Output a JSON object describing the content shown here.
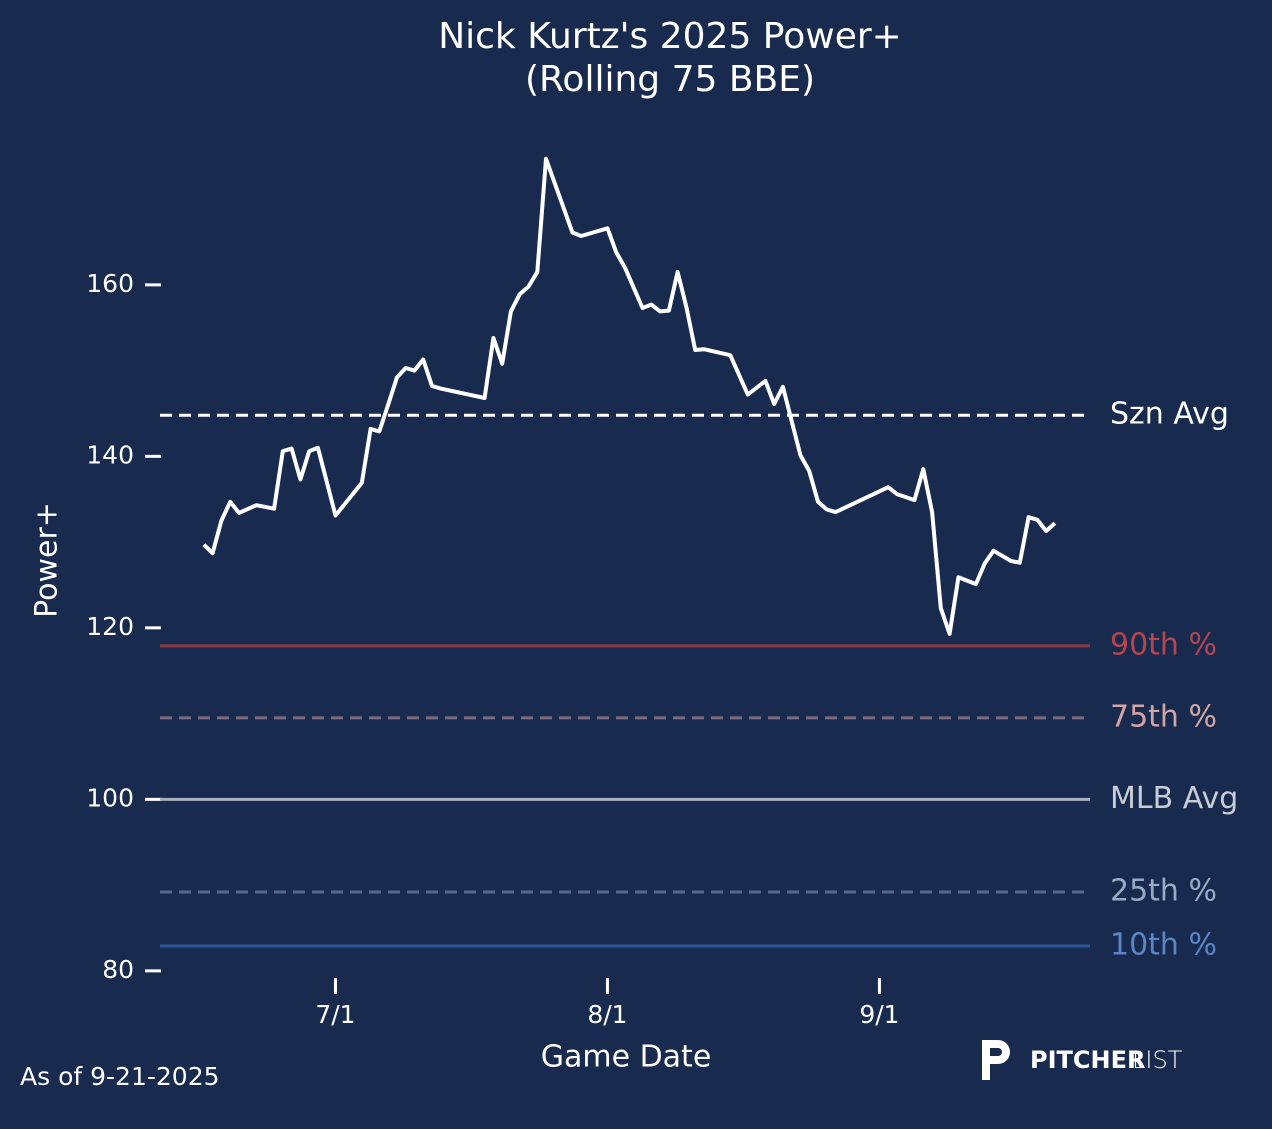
{
  "chart_data": {
    "type": "line",
    "title": "Nick Kurtz's 2025 Power+",
    "subtitle": "(Rolling 75 BBE)",
    "x_label": "Game Date",
    "y_label": "Power+",
    "footnote": "As of 9-21-2025",
    "logo": {
      "bold": "PITCHER",
      "light": "LIST"
    },
    "xlim": [
      "6/11",
      "9/25"
    ],
    "xticks": [
      "7/1",
      "8/1",
      "9/1"
    ],
    "ylim": [
      78,
      178
    ],
    "yticks": [
      80,
      100,
      120,
      140,
      160
    ],
    "x": [
      "6/16",
      "6/17",
      "6/18",
      "6/19",
      "6/20",
      "6/22",
      "6/24",
      "6/25",
      "6/26",
      "6/27",
      "6/28",
      "6/29",
      "7/1",
      "7/4",
      "7/5",
      "7/6",
      "7/7",
      "7/8",
      "7/9",
      "7/10",
      "7/11",
      "7/12",
      "7/13",
      "7/18",
      "7/19",
      "7/20",
      "7/21",
      "7/22",
      "7/23",
      "7/24",
      "7/25",
      "7/28",
      "7/29",
      "8/1",
      "8/2",
      "8/3",
      "8/5",
      "8/6",
      "8/7",
      "8/8",
      "8/9",
      "8/10",
      "8/11",
      "8/12",
      "8/15",
      "8/17",
      "8/19",
      "8/20",
      "8/21",
      "8/23",
      "8/24",
      "8/25",
      "8/26",
      "8/27",
      "9/2",
      "9/3",
      "9/5",
      "9/6",
      "9/7",
      "9/8",
      "9/9",
      "9/10",
      "9/12",
      "9/13",
      "9/14",
      "9/16",
      "9/17",
      "9/18",
      "9/19",
      "9/20",
      "9/21"
    ],
    "series": [
      {
        "name": "Power+",
        "color": "#ffffff",
        "values": [
          129.7,
          128.7,
          132.5,
          134.7,
          133.4,
          134.3,
          133.9,
          140.6,
          140.9,
          137.3,
          140.6,
          141.0,
          133.1,
          136.9,
          143.2,
          142.9,
          146.0,
          149.2,
          150.3,
          150.0,
          151.3,
          148.2,
          147.9,
          146.8,
          153.8,
          150.8,
          156.9,
          158.9,
          159.8,
          161.5,
          174.7,
          166.1,
          165.7,
          166.6,
          163.8,
          162.0,
          157.3,
          157.7,
          156.9,
          157.0,
          161.5,
          157.4,
          152.4,
          152.5,
          151.8,
          147.2,
          148.8,
          146.1,
          148.1,
          140.1,
          138.3,
          134.7,
          133.8,
          133.5,
          136.4,
          135.6,
          134.9,
          138.5,
          133.5,
          122.3,
          119.3,
          125.9,
          125.1,
          127.5,
          129.0,
          127.8,
          127.6,
          132.9,
          132.6,
          131.3,
          132.2
        ]
      }
    ],
    "reference_lines": [
      {
        "label": "Szn Avg",
        "value": 144.8,
        "color": "#ffffff",
        "label_color": "#ffffff",
        "dashed": true
      },
      {
        "label": "90th %",
        "value": 117.9,
        "color": "#8b3a42",
        "label_color": "#b5454e",
        "dashed": false
      },
      {
        "label": "75th %",
        "value": 109.5,
        "color": "#7d6a7a",
        "label_color": "#d4a5a5",
        "dashed": true
      },
      {
        "label": "MLB Avg",
        "value": 100,
        "color": "#a9b1bf",
        "label_color": "#c8ccd6",
        "dashed": false
      },
      {
        "label": "25th %",
        "value": 89.2,
        "color": "#56698a",
        "label_color": "#9aaac4",
        "dashed": true
      },
      {
        "label": "10th %",
        "value": 82.9,
        "color": "#2a5599",
        "label_color": "#5b86c4",
        "dashed": false
      }
    ]
  }
}
